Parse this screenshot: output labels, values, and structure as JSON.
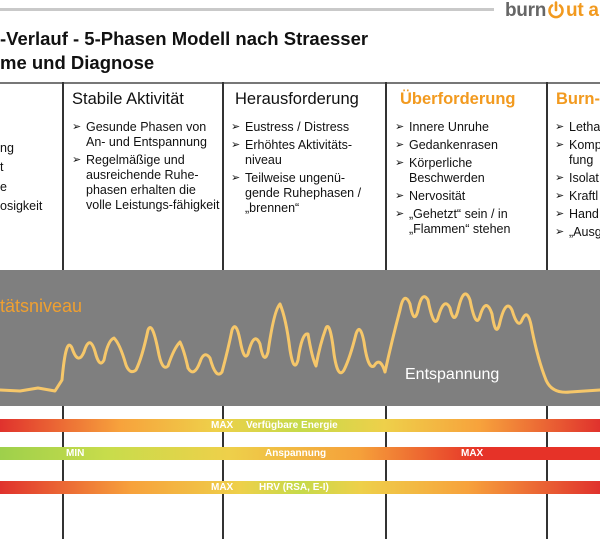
{
  "header": {
    "logo_prefix": "burn",
    "logo_suffix": "ut a",
    "title_line1": "-Verlauf - 5-Phasen Modell nach Straesser",
    "title_line2": "me und Diagnose"
  },
  "columns": [
    {
      "heading": "",
      "items": [
        "ng",
        "t",
        "e",
        "osigkeit"
      ]
    },
    {
      "heading": "Stabile Aktivität",
      "items": [
        "Gesunde Phasen von An- und Entspannung",
        "Regelmäßige und ausreichende Ruhe-phasen erhalten die volle Leistungs-fähigkeit"
      ]
    },
    {
      "heading": "Herausforderung",
      "items": [
        "Eustress / Distress",
        "Erhöhtes Aktivitäts-niveau",
        "Teilweise ungenü-gende Ruhephasen / „brennen“"
      ]
    },
    {
      "heading": "Überforderung",
      "items": [
        "Innere Unruhe",
        "Gedankenrasen",
        "Körperliche Beschwerden",
        "Nervosität",
        "„Gehetzt“ sein / in „Flammen“ stehen"
      ]
    },
    {
      "heading": "Burn-",
      "items": [
        "Letha",
        "Komp fung",
        "Isolat",
        "Kraftl",
        "Hand",
        "„Ausg"
      ]
    }
  ],
  "band": {
    "level_label": "tätsniveau",
    "relax_label": "Entspannung"
  },
  "bars": [
    {
      "max_label": "MAX",
      "name": "Verfügbare Energie"
    },
    {
      "min_label": "MIN",
      "name": "Anspannung",
      "max_label": "MAX"
    },
    {
      "max_label": "MAX",
      "name": "HRV (RSA, E-I)"
    }
  ],
  "colors": {
    "accent_orange": "#f29a1f",
    "band_gray": "#7f7f7f",
    "wave": "#f6c76a"
  },
  "icons": [
    "power-icon"
  ]
}
